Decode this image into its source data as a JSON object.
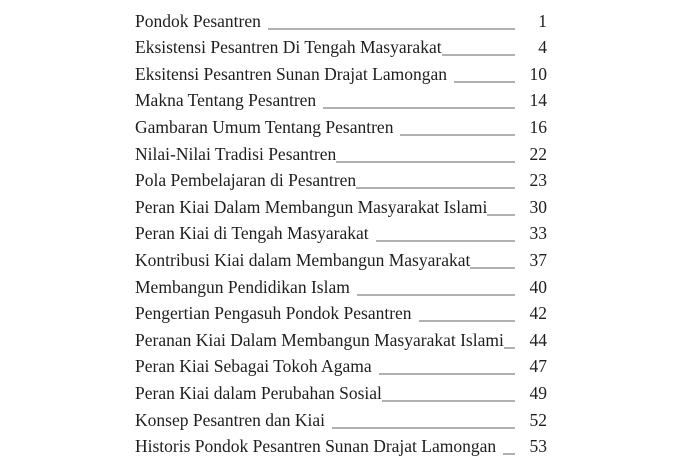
{
  "page": {
    "background_color": "#ffffff",
    "text_color": "#1e1e1e",
    "leader_color": "#636363",
    "kind": "table-of-contents-scan"
  },
  "toc": {
    "top_partial_row": {
      "title": "",
      "page": "",
      "underline_only": true
    },
    "entries": [
      {
        "title": "Pondok Pesantren",
        "page": "1",
        "space_before_leader": true
      },
      {
        "title": "Eksistensi Pesantren Di Tengah Masyarakat",
        "page": "4",
        "space_before_leader": false
      },
      {
        "title": "Eksitensi Pesantren Sunan Drajat Lamongan",
        "page": "10",
        "space_before_leader": true
      },
      {
        "title": "Makna Tentang Pesantren",
        "page": "14",
        "space_before_leader": true
      },
      {
        "title": "Gambaran Umum Tentang Pesantren",
        "page": "16",
        "space_before_leader": true
      },
      {
        "title": "Nilai-Nilai Tradisi Pesantren",
        "page": "22",
        "space_before_leader": false
      },
      {
        "title": "Pola Pembelajaran di Pesantren",
        "page": "23",
        "space_before_leader": false
      },
      {
        "title": "Peran Kiai Dalam Membangun Masyarakat Islami",
        "page": "30",
        "space_before_leader": false
      },
      {
        "title": "Peran Kiai di Tengah Masyarakat",
        "page": "33",
        "space_before_leader": true
      },
      {
        "title": "Kontribusi Kiai dalam Membangun Masyarakat",
        "page": "37",
        "space_before_leader": false
      },
      {
        "title": "Membangun Pendidikan Islam",
        "page": "40",
        "space_before_leader": true
      },
      {
        "title": "Pengertian Pengasuh Pondok Pesantren",
        "page": "42",
        "space_before_leader": true
      },
      {
        "title": "Peranan Kiai Dalam Membangun Masyarakat Islami",
        "page": "44",
        "space_before_leader": false
      },
      {
        "title": "Peran Kiai Sebagai Tokoh Agama",
        "page": "47",
        "space_before_leader": true
      },
      {
        "title": "Peran Kiai dalam Perubahan Sosial",
        "page": "49",
        "space_before_leader": false
      },
      {
        "title": "Konsep Pesantren dan Kiai",
        "page": "52",
        "space_before_leader": true
      },
      {
        "title": "Historis Pondok Pesantren Sunan Drajat Lamongan",
        "page": "53",
        "space_before_leader": true
      }
    ]
  }
}
